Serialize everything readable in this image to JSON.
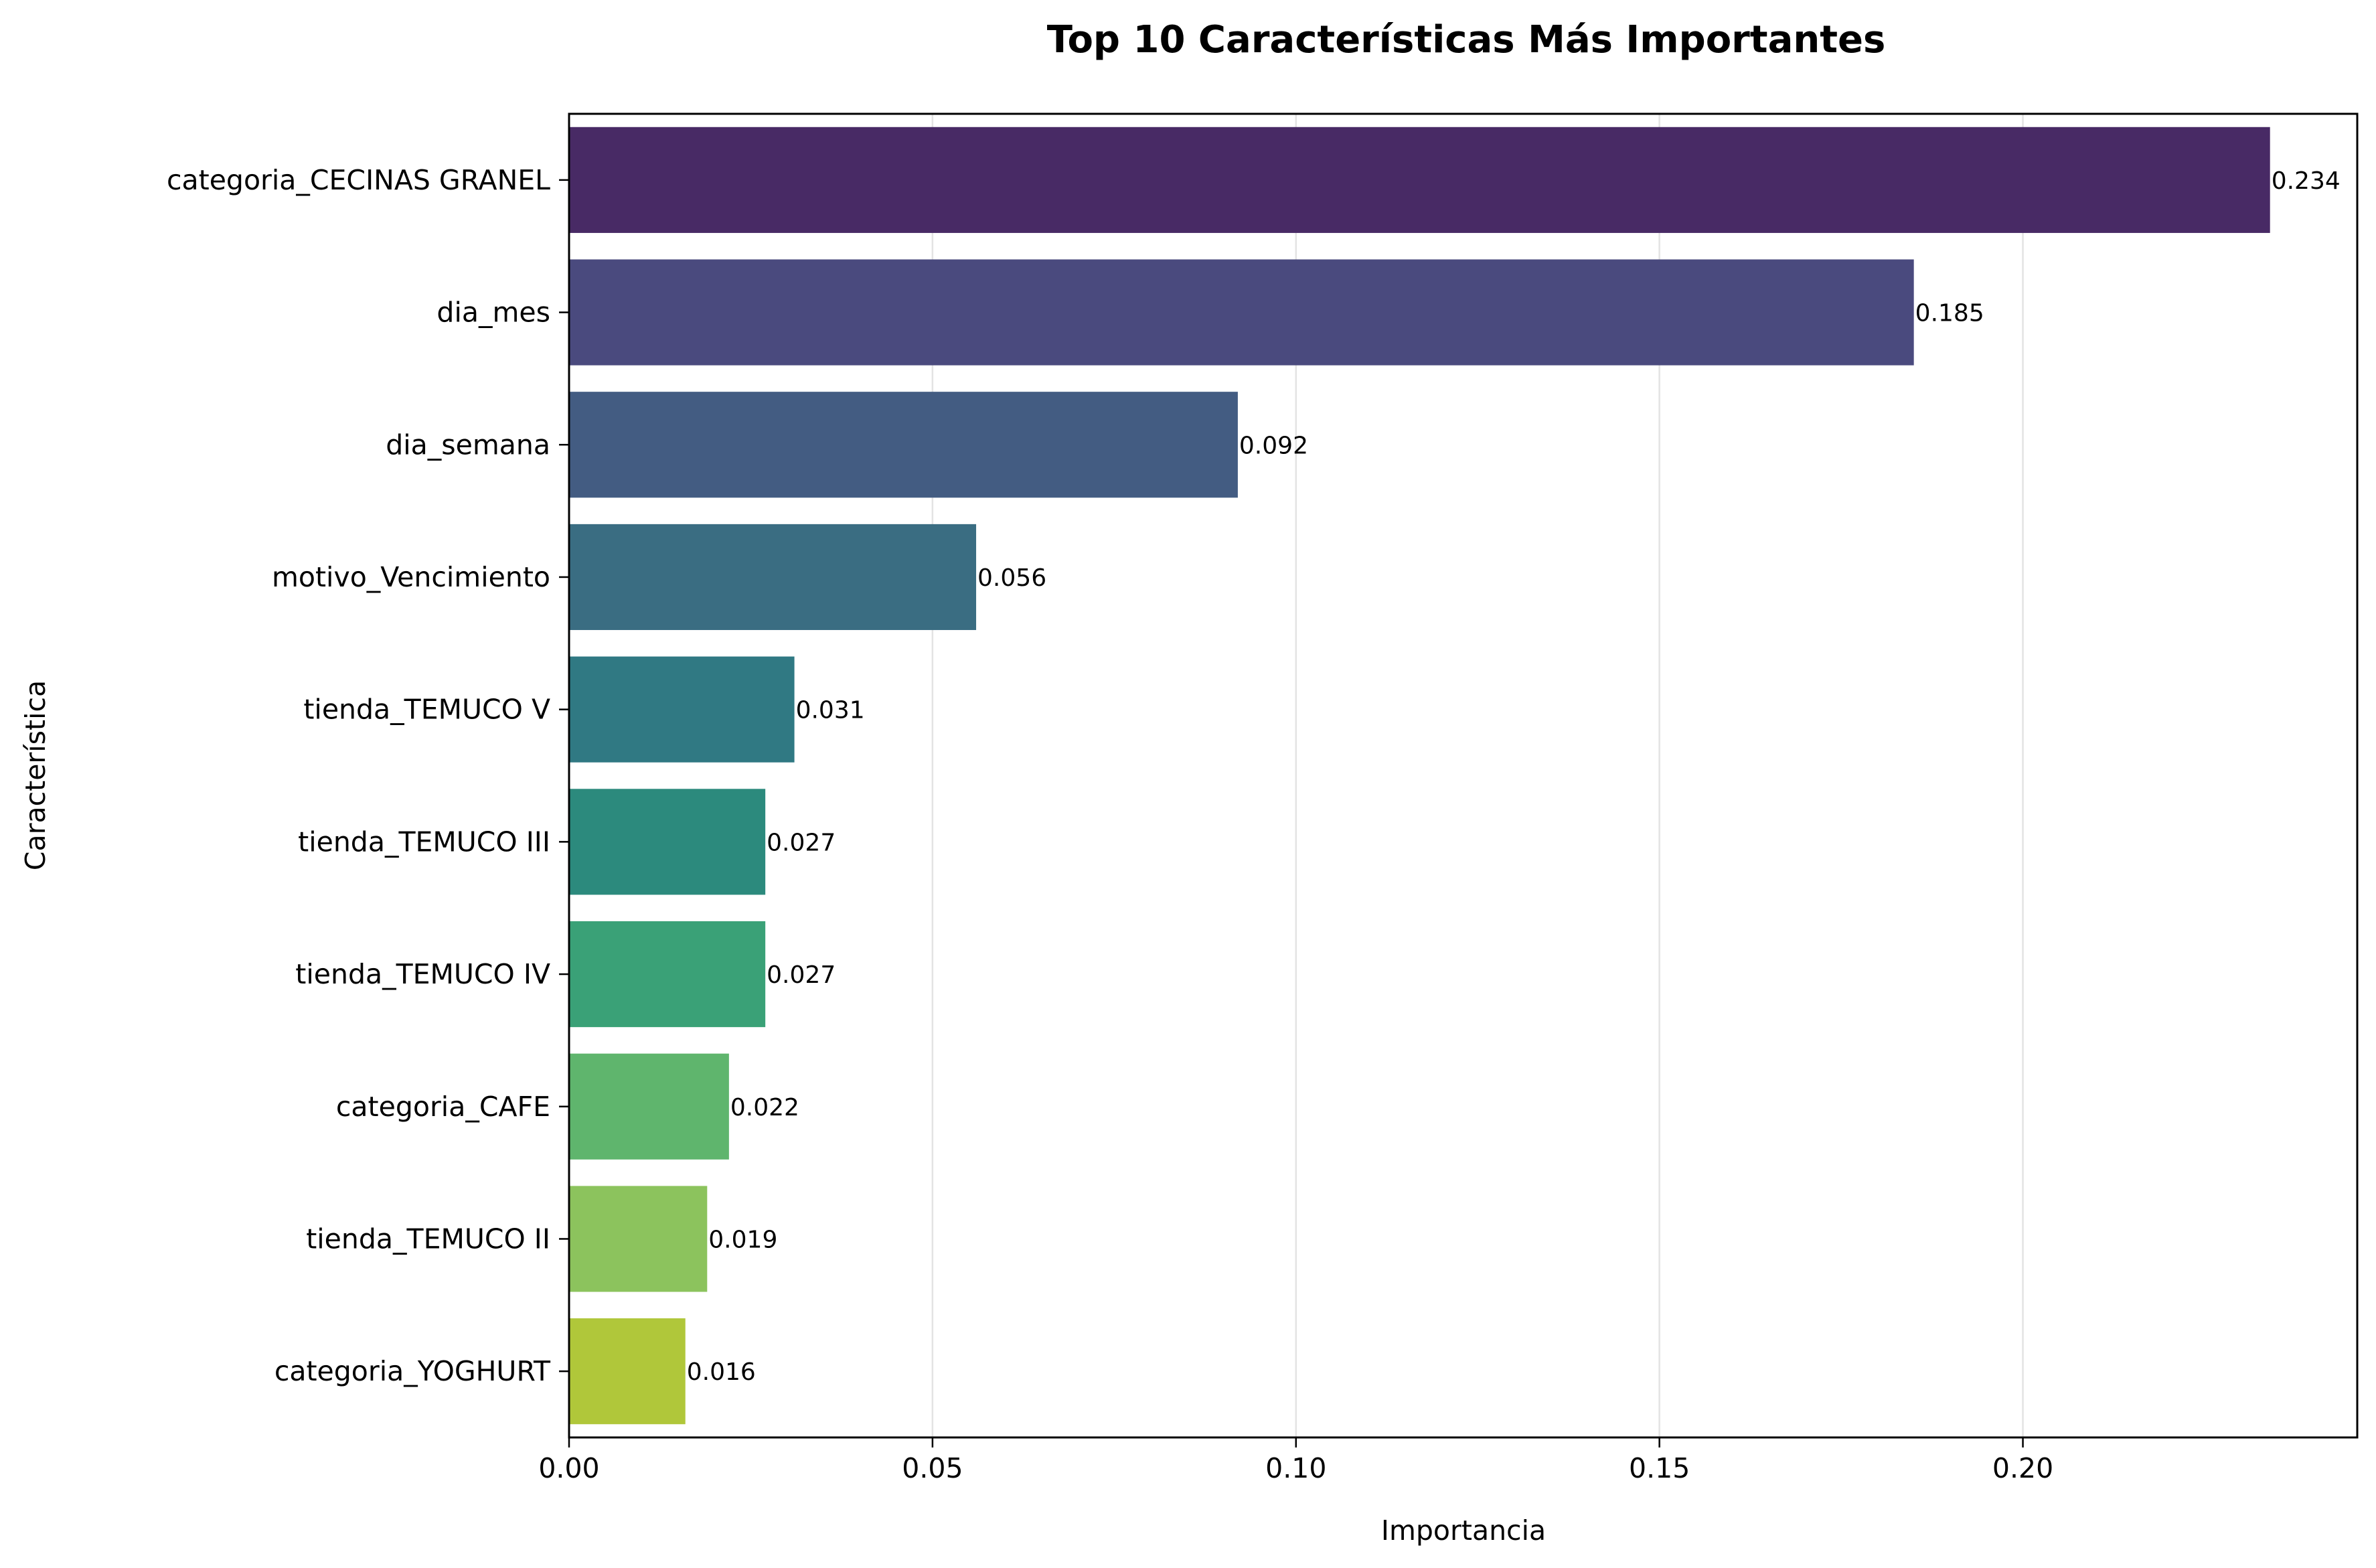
{
  "chart_data": {
    "type": "bar",
    "orientation": "horizontal",
    "title": "Top 10 Características Más Importantes",
    "xlabel": "Importancia",
    "ylabel": "Característica",
    "categories": [
      "categoria_CECINAS GRANEL",
      "dia_mes",
      "dia_semana",
      "motivo_Vencimiento",
      "tienda_TEMUCO V",
      "tienda_TEMUCO III",
      "tienda_TEMUCO IV",
      "categoria_CAFE",
      "tienda_TEMUCO II",
      "categoria_YOGHURT"
    ],
    "values": [
      0.234,
      0.185,
      0.092,
      0.056,
      0.031,
      0.027,
      0.027,
      0.022,
      0.019,
      0.016
    ],
    "data_labels": [
      "0.234",
      "0.185",
      "0.092",
      "0.056",
      "0.031",
      "0.027",
      "0.027",
      "0.022",
      "0.019",
      "0.016"
    ],
    "colors": [
      "#482a65",
      "#4a4a7e",
      "#435c82",
      "#3a6d82",
      "#307983",
      "#2c8a7d",
      "#3aa177",
      "#5fb56d",
      "#8cc35d",
      "#b0c73a"
    ],
    "xlim": [
      0,
      0.246
    ],
    "xticks": [
      0,
      0.05,
      0.1,
      0.15,
      0.2
    ],
    "xtick_labels": [
      "0.00",
      "0.05",
      "0.10",
      "0.15",
      "0.20"
    ],
    "grid": "x-axis only",
    "legend": "none"
  }
}
